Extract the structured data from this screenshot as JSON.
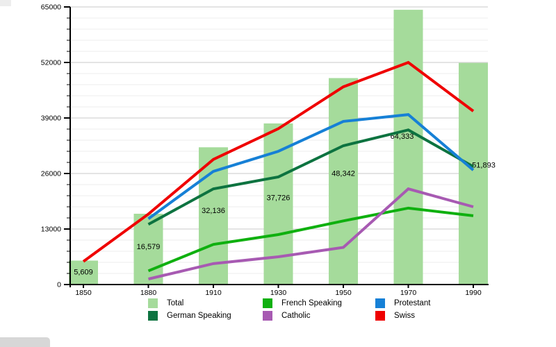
{
  "chart_data": {
    "type": "combo-bar-line",
    "categories": [
      "1850",
      "1880",
      "1910",
      "1930",
      "1950",
      "1970",
      "1990"
    ],
    "bar_series": {
      "name": "Total",
      "color": "#a5db9b",
      "values": [
        5609,
        16579,
        32136,
        37726,
        48342,
        64333,
        51893
      ],
      "value_labels": [
        "5,609",
        "16,579",
        "32,136",
        "37,726",
        "48,342",
        "64,333",
        "51,893"
      ]
    },
    "line_series": [
      {
        "name": "French Speaking",
        "color": "#0fb00f",
        "values": [
          null,
          3200,
          9400,
          11700,
          14900,
          17900,
          16100
        ]
      },
      {
        "name": "Catholic",
        "color": "#a75ab2",
        "values": [
          null,
          1300,
          4900,
          6500,
          8700,
          22400,
          18200
        ]
      },
      {
        "name": "German Speaking",
        "color": "#0d7340",
        "values": [
          null,
          14100,
          22400,
          25200,
          32500,
          36200,
          27600
        ]
      },
      {
        "name": "Protestant",
        "color": "#1680d6",
        "values": [
          null,
          15400,
          26500,
          31200,
          38200,
          39800,
          26800
        ]
      },
      {
        "name": "Swiss",
        "color": "#ef0000",
        "values": [
          5400,
          16500,
          29300,
          36500,
          46300,
          52000,
          40600
        ]
      }
    ],
    "yaxis": {
      "min": 0,
      "max": 65000,
      "major_step": 13000,
      "minor_step": 2600,
      "tick_labels": [
        "0",
        "13000",
        "26000",
        "39000",
        "52000",
        "65000"
      ]
    },
    "xaxis": {
      "tick_labels": [
        "1850",
        "1880",
        "1910",
        "1930",
        "1950",
        "1970",
        "1990"
      ]
    },
    "grid": "horizontal-minor-and-major",
    "legend_position": "bottom"
  },
  "legend": {
    "items": [
      {
        "label": "Total",
        "color": "#a5db9b"
      },
      {
        "label": "French Speaking",
        "color": "#0fb00f"
      },
      {
        "label": "Protestant",
        "color": "#1680d6"
      },
      {
        "label": "German Speaking",
        "color": "#0d7340"
      },
      {
        "label": "Catholic",
        "color": "#a75ab2"
      },
      {
        "label": "Swiss",
        "color": "#ef0000"
      }
    ]
  }
}
